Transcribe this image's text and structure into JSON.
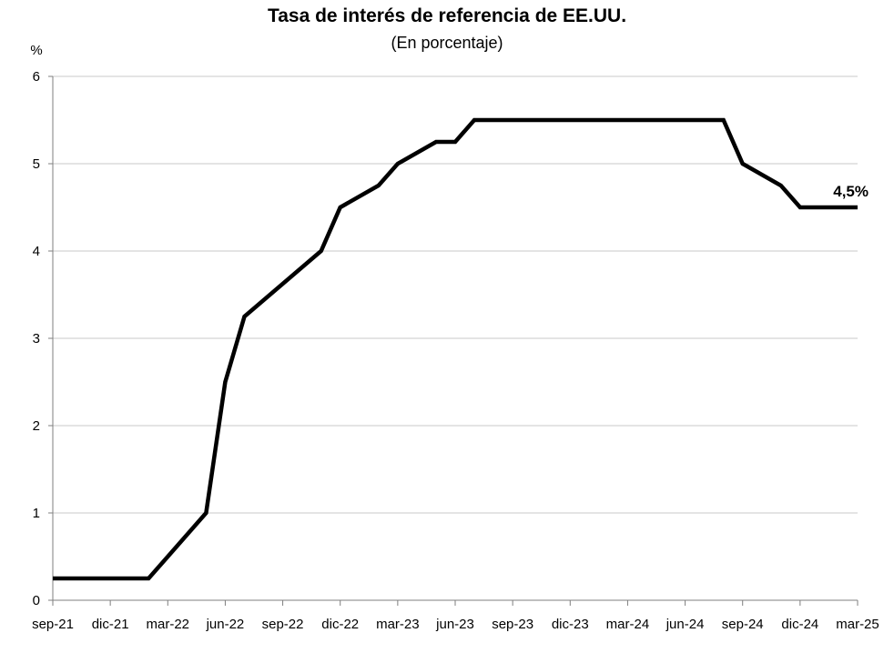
{
  "chart_data": {
    "type": "line",
    "title": "Tasa de interés de referencia de EE.UU.",
    "subtitle": "(En porcentaje)",
    "ylabel": "%",
    "xlabel": "",
    "ylim": [
      0,
      6
    ],
    "yticks": [
      0,
      1,
      2,
      3,
      4,
      5,
      6
    ],
    "xlim": [
      "2021-09",
      "2025-03"
    ],
    "xticks": [
      "sep-21",
      "dic-21",
      "mar-22",
      "jun-22",
      "sep-22",
      "dic-22",
      "mar-23",
      "jun-23",
      "sep-23",
      "dic-23",
      "mar-24",
      "jun-24",
      "sep-24",
      "dic-24",
      "mar-25"
    ],
    "grid": "horizontal",
    "legend": "none",
    "series": [
      {
        "color": "#000000",
        "points": [
          {
            "x": "2021-09",
            "y": 0.25
          },
          {
            "x": "2022-02",
            "y": 0.25
          },
          {
            "x": "2022-03",
            "y": 0.5
          },
          {
            "x": "2022-05",
            "y": 1.0
          },
          {
            "x": "2022-06",
            "y": 2.5
          },
          {
            "x": "2022-07",
            "y": 3.25
          },
          {
            "x": "2022-11",
            "y": 4.0
          },
          {
            "x": "2022-12",
            "y": 4.5
          },
          {
            "x": "2023-02",
            "y": 4.75
          },
          {
            "x": "2023-03",
            "y": 5.0
          },
          {
            "x": "2023-05",
            "y": 5.25
          },
          {
            "x": "2023-06",
            "y": 5.25
          },
          {
            "x": "2023-07",
            "y": 5.5
          },
          {
            "x": "2024-08",
            "y": 5.5
          },
          {
            "x": "2024-09",
            "y": 5.0
          },
          {
            "x": "2024-11",
            "y": 4.75
          },
          {
            "x": "2024-12",
            "y": 4.5
          },
          {
            "x": "2025-03",
            "y": 4.5
          }
        ]
      }
    ],
    "annotations": [
      {
        "text": "4,5%",
        "x": "2025-03",
        "y": 4.5
      }
    ]
  }
}
